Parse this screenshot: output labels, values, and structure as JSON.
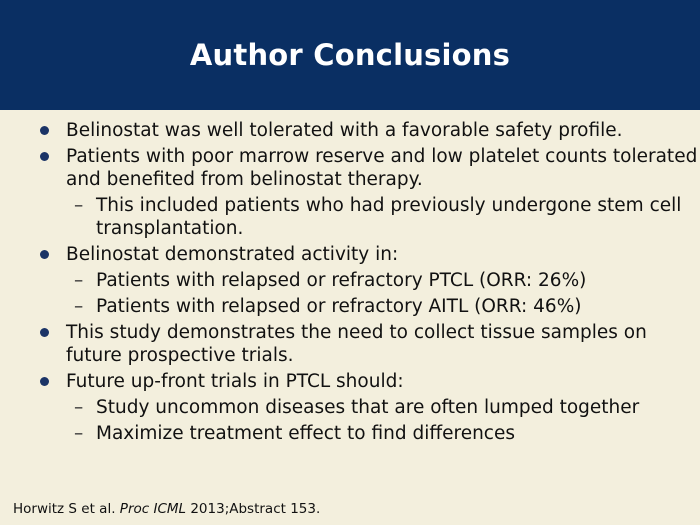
{
  "slide": {
    "title": "Author Conclusions",
    "bullets": [
      "Belinostat was well tolerated with a favorable safety profile.",
      "Patients with poor marrow reserve and low platelet counts tolerated and benefited from belinostat therapy.",
      "This included patients who had previously undergone stem cell transplantation.",
      "Belinostat demonstrated activity in:",
      "Patients with relapsed or refractory PTCL (ORR: 26%)",
      "Patients with relapsed or refractory AITL (ORR: 46%)",
      "This study demonstrates the need to collect tissue samples on future prospective trials.",
      "Future up-front trials in PTCL should:",
      "Study uncommon diseases that are often lumped together",
      "Maximize treatment effect to find differences"
    ],
    "dash_glyph": "–",
    "footer": {
      "authors": "Horwitz S et al.",
      "journal": "Proc ICML",
      "citation": "2013;Abstract 153."
    }
  },
  "colors": {
    "header": "#0a2f63",
    "background": "#f3efdd",
    "bullet_dot": "#1b3466"
  }
}
